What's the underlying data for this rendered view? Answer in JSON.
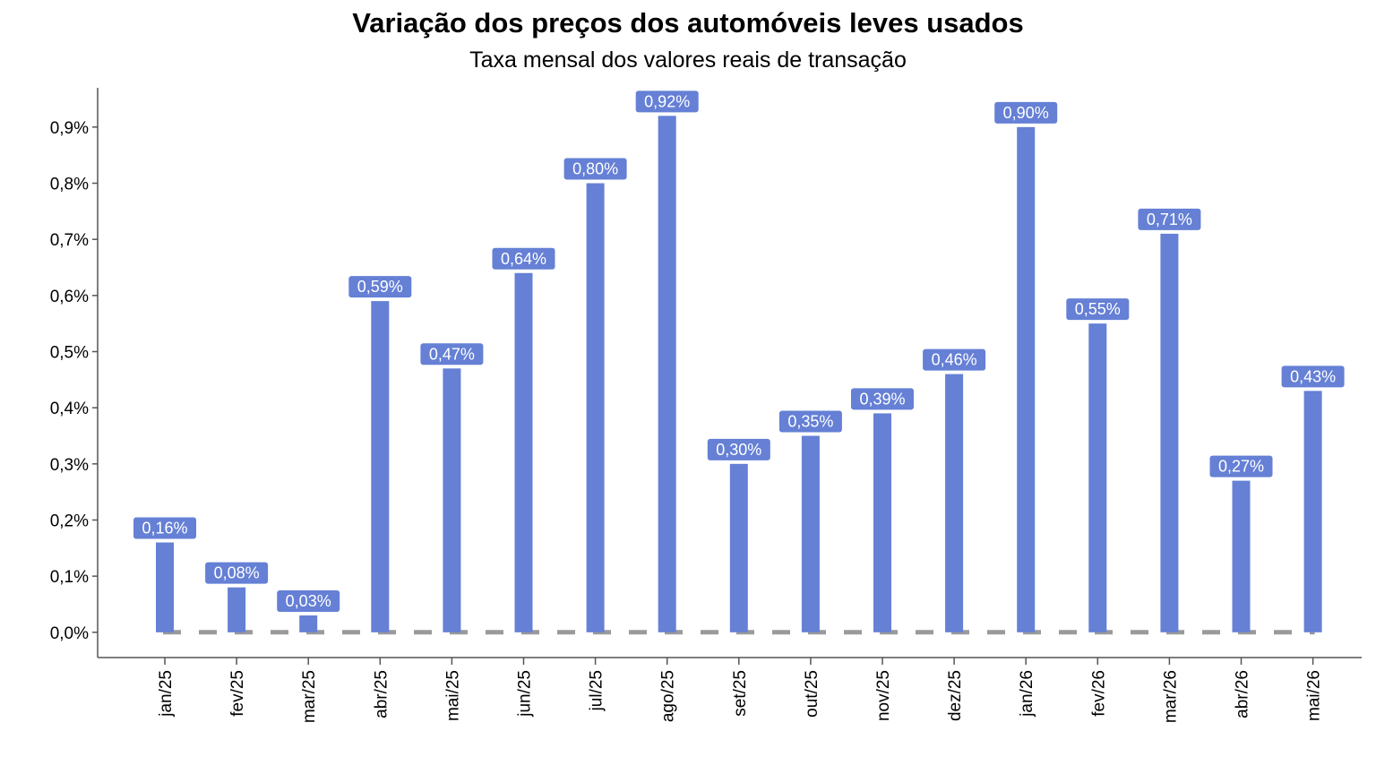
{
  "chart_data": {
    "type": "bar",
    "title": "Variação dos preços dos automóveis leves usados",
    "subtitle": "Taxa mensal dos valores reais de transação",
    "xlabel": "",
    "ylabel": "",
    "categories": [
      "jan/25",
      "fev/25",
      "mar/25",
      "abr/25",
      "mai/25",
      "jun/25",
      "jul/25",
      "ago/25",
      "set/25",
      "out/25",
      "nov/25",
      "dez/25",
      "jan/26",
      "fev/26",
      "mar/26",
      "abr/26",
      "mai/26"
    ],
    "values": [
      0.16,
      0.08,
      0.03,
      0.59,
      0.47,
      0.64,
      0.8,
      0.92,
      0.3,
      0.35,
      0.39,
      0.46,
      0.9,
      0.55,
      0.71,
      0.27,
      0.43
    ],
    "data_labels": [
      "0,16%",
      "0,08%",
      "0,03%",
      "0,59%",
      "0,47%",
      "0,64%",
      "0,80%",
      "0,92%",
      "0,30%",
      "0,35%",
      "0,39%",
      "0,46%",
      "0,90%",
      "0,55%",
      "0,71%",
      "0,27%",
      "0,43%"
    ],
    "y_ticks": [
      0,
      0.1,
      0.2,
      0.3,
      0.4,
      0.5,
      0.6,
      0.7,
      0.8,
      0.9
    ],
    "y_tick_labels": [
      "0,0%",
      "0,1%",
      "0,2%",
      "0,3%",
      "0,4%",
      "0,5%",
      "0,6%",
      "0,7%",
      "0,8%",
      "0,9%"
    ],
    "ylim": [
      -0.045,
      0.97
    ],
    "grid": false,
    "legend": "none",
    "reference_line": {
      "y": 0,
      "style": "dashed",
      "color": "#9a9a9a"
    },
    "colors": {
      "bar": "#6580d5",
      "label_box": "#6580d5",
      "label_text": "#ffffff",
      "axis": "#555555"
    }
  }
}
